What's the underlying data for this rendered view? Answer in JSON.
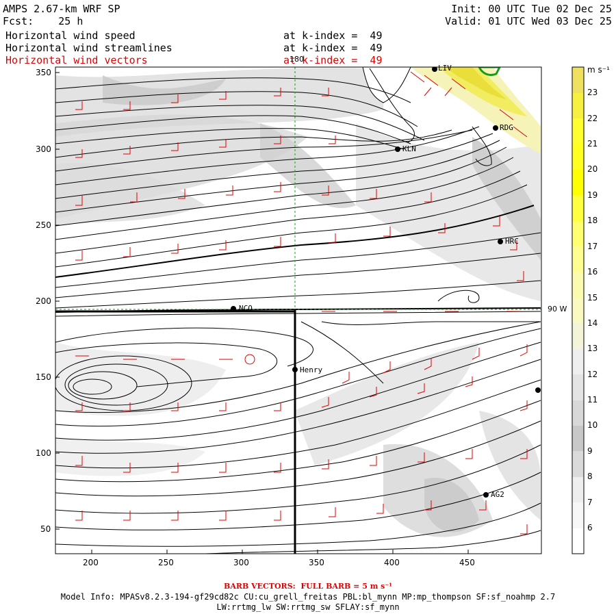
{
  "header": {
    "model": "AMPS 2.67-km WRF SP",
    "fcst_label": "Fcst:",
    "fcst_value": "25 h",
    "init": "Init: 00 UTC Tue 02 Dec 25",
    "valid": "Valid: 01 UTC Wed 03 Dec 25",
    "fields": [
      {
        "name": "Horizontal wind speed",
        "level": "at k-index =  49",
        "color": "#000000"
      },
      {
        "name": "Horizontal wind streamlines",
        "level": "at k-index =  49",
        "color": "#000000"
      },
      {
        "name": "Horizontal wind vectors",
        "level": "at k-index =  49",
        "color": "#e00000"
      }
    ]
  },
  "map": {
    "x_ticks": [
      "200",
      "250",
      "300",
      "350",
      "400",
      "450"
    ],
    "y_ticks": [
      "350",
      "300",
      "250",
      "200",
      "150",
      "100",
      "50"
    ],
    "lon_label_top": "180",
    "lat_label_right": "90 W",
    "stations": [
      {
        "name": "LIV"
      },
      {
        "name": "RDG"
      },
      {
        "name": "KLN"
      },
      {
        "name": "HRC"
      },
      {
        "name": "NCO"
      },
      {
        "name": "Henry"
      },
      {
        "name": "AG2"
      },
      {
        "name": ""
      }
    ]
  },
  "colorbar": {
    "unit": "m s⁻¹",
    "levels": [
      "6",
      "7",
      "8",
      "9",
      "10",
      "11",
      "12",
      "13",
      "14",
      "15",
      "16",
      "17",
      "18",
      "19",
      "20",
      "21",
      "22",
      "23"
    ],
    "colors": [
      "#ffffff",
      "#eeeeee",
      "#dadada",
      "#c8c8c8",
      "#d8d8d8",
      "#e4e4e4",
      "#efefef",
      "#f4f4d8",
      "#fafac0",
      "#fbfbb0",
      "#fdfd90",
      "#ffff70",
      "#ffff40",
      "#ffff00",
      "#ffff20",
      "#ffff30",
      "#f8f040",
      "#f0e060"
    ]
  },
  "footer": {
    "barb_note": "BARB VECTORS:  FULL BARB = 5 m s⁻¹",
    "model_info": "Model Info: MPASv8.2.3-194-gf29cd82c CU:cu_grell_freitas PBL:bl_mynn MP:mp_thompson SF:sf_noahmp 2.7",
    "model_info2": "LW:rrtmg_lw SW:rrtmg_sw SFLAY:sf_mynn"
  }
}
